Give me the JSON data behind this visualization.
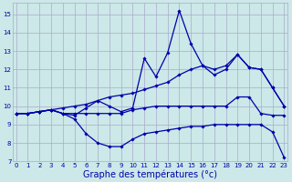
{
  "background_color": "#cce8e8",
  "grid_color": "#aaaacc",
  "line_color": "#0000aa",
  "xlabel": "Graphe des températures (°c)",
  "xlabel_fontsize": 7,
  "ylim": [
    7,
    15.6
  ],
  "xlim": [
    -0.3,
    23.3
  ],
  "yticks": [
    7,
    8,
    9,
    10,
    11,
    12,
    13,
    14,
    15
  ],
  "xticks": [
    0,
    1,
    2,
    3,
    4,
    5,
    6,
    7,
    8,
    9,
    10,
    11,
    12,
    13,
    14,
    15,
    16,
    17,
    18,
    19,
    20,
    21,
    22,
    23
  ],
  "series": [
    {
      "x": [
        0,
        1,
        2,
        3,
        4,
        5,
        6,
        7,
        8,
        9,
        10,
        11,
        12,
        13,
        14,
        15,
        16,
        17,
        18,
        19,
        20,
        21,
        22,
        23
      ],
      "y": [
        9.6,
        9.6,
        9.7,
        9.8,
        9.6,
        9.3,
        8.5,
        8.0,
        7.8,
        7.8,
        8.2,
        8.5,
        8.6,
        8.7,
        8.8,
        8.9,
        8.9,
        9.0,
        9.0,
        9.0,
        9.0,
        9.0,
        8.6,
        7.2
      ]
    },
    {
      "x": [
        0,
        1,
        2,
        3,
        4,
        5,
        6,
        7,
        8,
        9,
        10,
        11,
        12,
        13,
        14,
        15,
        16,
        17,
        18,
        19,
        20,
        21,
        22,
        23
      ],
      "y": [
        9.6,
        9.6,
        9.7,
        9.8,
        9.6,
        9.5,
        9.9,
        10.3,
        10.0,
        9.7,
        9.9,
        12.6,
        11.6,
        12.9,
        15.2,
        13.4,
        12.2,
        11.7,
        12.0,
        12.8,
        12.1,
        12.0,
        11.0,
        10.0
      ]
    },
    {
      "x": [
        0,
        1,
        2,
        3,
        4,
        5,
        6,
        7,
        8,
        9,
        10,
        11,
        12,
        13,
        14,
        15,
        16,
        17,
        18,
        19,
        20,
        21,
        22,
        23
      ],
      "y": [
        9.6,
        9.6,
        9.7,
        9.8,
        9.9,
        10.0,
        10.1,
        10.3,
        10.5,
        10.6,
        10.7,
        10.9,
        11.1,
        11.3,
        11.7,
        12.0,
        12.2,
        12.0,
        12.2,
        12.8,
        12.1,
        12.0,
        11.0,
        10.0
      ]
    },
    {
      "x": [
        0,
        1,
        2,
        3,
        4,
        5,
        6,
        7,
        8,
        9,
        10,
        11,
        12,
        13,
        14,
        15,
        16,
        17,
        18,
        19,
        20,
        21,
        22,
        23
      ],
      "y": [
        9.6,
        9.6,
        9.7,
        9.8,
        9.6,
        9.6,
        9.6,
        9.6,
        9.6,
        9.6,
        9.8,
        9.9,
        10.0,
        10.0,
        10.0,
        10.0,
        10.0,
        10.0,
        10.0,
        10.5,
        10.5,
        9.6,
        9.5,
        9.5
      ]
    }
  ]
}
